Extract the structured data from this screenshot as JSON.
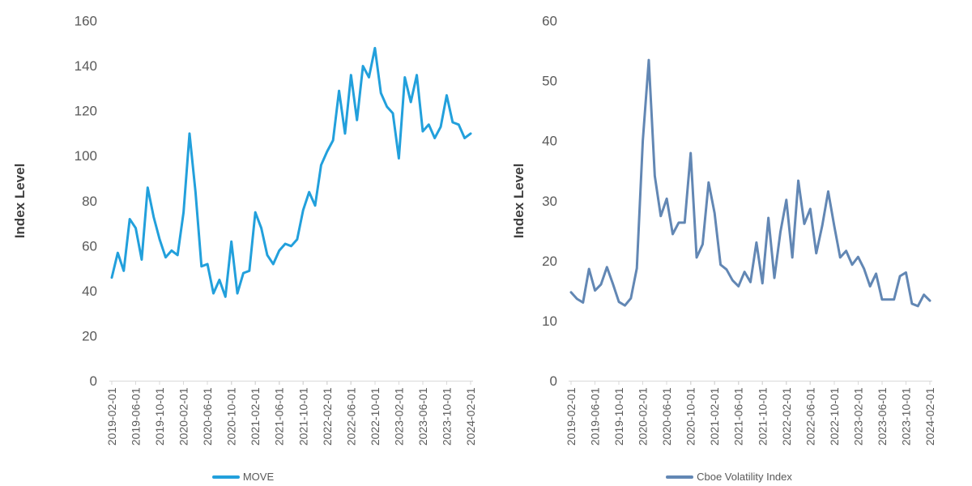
{
  "page_background": "#FFFFFF",
  "style_colors": {
    "tick_label_color": "#595959",
    "axis_title_color": "#404040",
    "axis_line_color": "#D9D9D9"
  },
  "chart_data": [
    {
      "type": "line",
      "title": "",
      "xlabel": "",
      "ylabel": "Index Level",
      "legend_label": "MOVE",
      "legend_position": "bottom",
      "line_color": "#22A0DC",
      "ylim": [
        0,
        160
      ],
      "ytick_step": 20,
      "yticks": [
        0,
        20,
        40,
        60,
        80,
        100,
        120,
        140,
        160
      ],
      "grid": false,
      "xtick_labels": [
        "2019-02-01",
        "2019-06-01",
        "2019-10-01",
        "2020-02-01",
        "2020-06-01",
        "2020-10-01",
        "2021-02-01",
        "2021-06-01",
        "2021-10-01",
        "2022-02-01",
        "2022-06-01",
        "2022-10-01",
        "2023-02-01",
        "2023-06-01",
        "2023-10-01",
        "2024-02-01"
      ],
      "x": [
        "2019-02-01",
        "2019-03-01",
        "2019-04-01",
        "2019-05-01",
        "2019-06-01",
        "2019-07-01",
        "2019-08-01",
        "2019-09-01",
        "2019-10-01",
        "2019-11-01",
        "2019-12-01",
        "2020-01-01",
        "2020-02-01",
        "2020-03-01",
        "2020-04-01",
        "2020-05-01",
        "2020-06-01",
        "2020-07-01",
        "2020-08-01",
        "2020-09-01",
        "2020-10-01",
        "2020-11-01",
        "2020-12-01",
        "2021-01-01",
        "2021-02-01",
        "2021-03-01",
        "2021-04-01",
        "2021-05-01",
        "2021-06-01",
        "2021-07-01",
        "2021-08-01",
        "2021-09-01",
        "2021-10-01",
        "2021-11-01",
        "2021-12-01",
        "2022-01-01",
        "2022-02-01",
        "2022-03-01",
        "2022-04-01",
        "2022-05-01",
        "2022-06-01",
        "2022-07-01",
        "2022-08-01",
        "2022-09-01",
        "2022-10-01",
        "2022-11-01",
        "2022-12-01",
        "2023-01-01",
        "2023-02-01",
        "2023-03-01",
        "2023-04-01",
        "2023-05-01",
        "2023-06-01",
        "2023-07-01",
        "2023-08-01",
        "2023-09-01",
        "2023-10-01",
        "2023-11-01",
        "2023-12-01",
        "2024-01-01",
        "2024-02-01"
      ],
      "values": [
        46,
        57,
        49,
        72,
        68,
        54,
        86,
        73,
        63,
        55,
        58,
        56,
        75,
        110,
        84,
        51,
        52,
        39,
        45,
        37.5,
        62,
        39,
        48,
        49,
        75,
        68,
        56,
        52,
        58,
        61,
        60,
        63,
        76,
        84,
        78,
        96,
        102,
        107,
        129,
        110,
        136,
        116,
        140,
        135,
        148,
        128,
        122,
        119,
        99,
        135,
        124,
        136,
        111,
        114,
        108,
        113,
        127,
        115,
        114,
        108,
        110
      ]
    },
    {
      "type": "line",
      "title": "",
      "xlabel": "",
      "ylabel": "Index Level",
      "legend_label": "Cboe Volatility Index",
      "legend_position": "bottom",
      "line_color": "#6287B4",
      "ylim": [
        0,
        60
      ],
      "ytick_step": 10,
      "yticks": [
        0,
        10,
        20,
        30,
        40,
        50,
        60
      ],
      "grid": false,
      "xtick_labels": [
        "2019-02-01",
        "2019-06-01",
        "2019-10-01",
        "2020-02-01",
        "2020-06-01",
        "2020-10-01",
        "2021-02-01",
        "2021-06-01",
        "2021-10-01",
        "2022-02-01",
        "2022-06-01",
        "2022-10-01",
        "2023-02-01",
        "2023-06-01",
        "2023-10-01",
        "2024-02-01"
      ],
      "x": [
        "2019-02-01",
        "2019-03-01",
        "2019-04-01",
        "2019-05-01",
        "2019-06-01",
        "2019-07-01",
        "2019-08-01",
        "2019-09-01",
        "2019-10-01",
        "2019-11-01",
        "2019-12-01",
        "2020-01-01",
        "2020-02-01",
        "2020-03-01",
        "2020-04-01",
        "2020-05-01",
        "2020-06-01",
        "2020-07-01",
        "2020-08-01",
        "2020-09-01",
        "2020-10-01",
        "2020-11-01",
        "2020-12-01",
        "2021-01-01",
        "2021-02-01",
        "2021-03-01",
        "2021-04-01",
        "2021-05-01",
        "2021-06-01",
        "2021-07-01",
        "2021-08-01",
        "2021-09-01",
        "2021-10-01",
        "2021-11-01",
        "2021-12-01",
        "2022-01-01",
        "2022-02-01",
        "2022-03-01",
        "2022-04-01",
        "2022-05-01",
        "2022-06-01",
        "2022-07-01",
        "2022-08-01",
        "2022-09-01",
        "2022-10-01",
        "2022-11-01",
        "2022-12-01",
        "2023-01-01",
        "2023-02-01",
        "2023-03-01",
        "2023-04-01",
        "2023-05-01",
        "2023-06-01",
        "2023-07-01",
        "2023-08-01",
        "2023-09-01",
        "2023-10-01",
        "2023-11-01",
        "2023-12-01",
        "2024-01-01",
        "2024-02-01"
      ],
      "values": [
        14.8,
        13.7,
        13.1,
        18.7,
        15.1,
        16.1,
        19,
        16.2,
        13.2,
        12.6,
        13.8,
        18.8,
        40.1,
        53.5,
        34.2,
        27.5,
        30.4,
        24.5,
        26.4,
        26.4,
        38,
        20.6,
        22.8,
        33.1,
        28,
        19.4,
        18.6,
        16.8,
        15.8,
        18.2,
        16.5,
        23.1,
        16.3,
        27.2,
        17.2,
        24.8,
        30.2,
        20.6,
        33.4,
        26.2,
        28.7,
        21.3,
        25.9,
        31.6,
        25.9,
        20.6,
        21.7,
        19.4,
        20.7,
        18.7,
        15.8,
        17.9,
        13.6,
        13.6,
        13.6,
        17.5,
        18.1,
        12.9,
        12.5,
        14.4,
        13.4
      ]
    }
  ]
}
